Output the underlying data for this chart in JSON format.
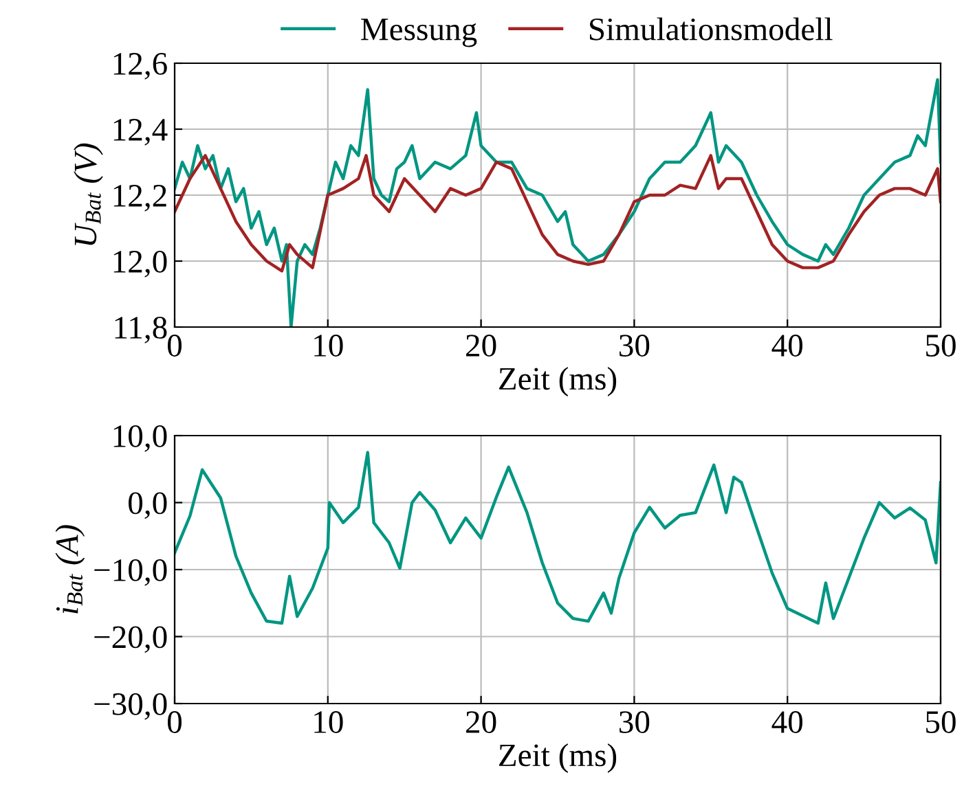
{
  "chart_data": [
    {
      "type": "line",
      "xlabel": "Zeit (ms)",
      "ylabel": "U$_{Bat}$ (V)",
      "legend": "top",
      "grid": true,
      "xlim": [
        0,
        50
      ],
      "xticks": [
        0,
        10,
        20,
        30,
        40,
        50
      ],
      "ylim": [
        11.8,
        12.6
      ],
      "yticks": [
        {
          "value": 11.8,
          "label": "11,8"
        },
        {
          "value": 12.0,
          "label": "12,0"
        },
        {
          "value": 12.2,
          "label": "12,2"
        },
        {
          "value": 12.4,
          "label": "12,4"
        },
        {
          "value": 12.6,
          "label": "12,6"
        }
      ],
      "series": [
        {
          "name": "Messung",
          "color": "#009682",
          "x": [
            0,
            0.5,
            1,
            1.5,
            2,
            2.5,
            3,
            3.5,
            4,
            4.5,
            5,
            5.5,
            6,
            6.5,
            7,
            7.3,
            7.6,
            8,
            8.5,
            9,
            9.5,
            10,
            10.5,
            11,
            11.5,
            12,
            12.6,
            13,
            13.5,
            14,
            14.5,
            15,
            15.5,
            16,
            17,
            18,
            19,
            19.7,
            20,
            21,
            22,
            23,
            24,
            25,
            25.5,
            26,
            27,
            28,
            29,
            30,
            31,
            32,
            33,
            34,
            35,
            35.5,
            36,
            37,
            38,
            39,
            40,
            41,
            42,
            42.5,
            43,
            44,
            45,
            46,
            47,
            48,
            48.5,
            49,
            49.8,
            50
          ],
          "values": [
            12.22,
            12.3,
            12.25,
            12.35,
            12.28,
            12.32,
            12.22,
            12.28,
            12.18,
            12.22,
            12.1,
            12.15,
            12.05,
            12.1,
            12.0,
            12.05,
            11.8,
            12.0,
            12.05,
            12.02,
            12.1,
            12.2,
            12.3,
            12.25,
            12.35,
            12.32,
            12.52,
            12.25,
            12.2,
            12.18,
            12.28,
            12.3,
            12.35,
            12.25,
            12.3,
            12.28,
            12.32,
            12.45,
            12.35,
            12.3,
            12.3,
            12.22,
            12.2,
            12.12,
            12.15,
            12.05,
            12.0,
            12.02,
            12.08,
            12.15,
            12.25,
            12.3,
            12.3,
            12.35,
            12.45,
            12.3,
            12.35,
            12.3,
            12.2,
            12.12,
            12.05,
            12.02,
            12.0,
            12.05,
            12.02,
            12.1,
            12.2,
            12.25,
            12.3,
            12.32,
            12.38,
            12.35,
            12.55,
            12.3
          ]
        },
        {
          "name": "Simulationsmodell",
          "color": "#a22223",
          "x": [
            0,
            1,
            2,
            3,
            4,
            5,
            6,
            7,
            7.5,
            8,
            9,
            10,
            11,
            12,
            12.5,
            13,
            14,
            15,
            16,
            17,
            18,
            19,
            20,
            21,
            22,
            23,
            24,
            25,
            26,
            27,
            28,
            29,
            30,
            31,
            32,
            33,
            34,
            35,
            35.5,
            36,
            37,
            38,
            39,
            40,
            41,
            42,
            43,
            44,
            45,
            46,
            47,
            48,
            49,
            49.8,
            50
          ],
          "values": [
            12.15,
            12.25,
            12.32,
            12.22,
            12.12,
            12.05,
            12.0,
            11.97,
            12.05,
            12.02,
            11.98,
            12.2,
            12.22,
            12.25,
            12.32,
            12.2,
            12.15,
            12.25,
            12.2,
            12.15,
            12.22,
            12.2,
            12.22,
            12.3,
            12.28,
            12.18,
            12.08,
            12.02,
            12.0,
            11.99,
            12.0,
            12.08,
            12.18,
            12.2,
            12.2,
            12.23,
            12.22,
            12.32,
            12.22,
            12.25,
            12.25,
            12.15,
            12.05,
            12.0,
            11.98,
            11.98,
            12.0,
            12.08,
            12.15,
            12.2,
            12.22,
            12.22,
            12.2,
            12.28,
            12.18
          ]
        }
      ]
    },
    {
      "type": "line",
      "xlabel": "Zeit (ms)",
      "ylabel": "i$_{Bat}$ (A)",
      "grid": true,
      "xlim": [
        0,
        50
      ],
      "xticks": [
        0,
        10,
        20,
        30,
        40,
        50
      ],
      "ylim": [
        -30,
        10
      ],
      "yticks": [
        {
          "value": -30,
          "label": "−30,0"
        },
        {
          "value": -20,
          "label": "−20,0"
        },
        {
          "value": -10,
          "label": "−10,0"
        },
        {
          "value": 0,
          "label": "0,0"
        },
        {
          "value": 10,
          "label": "10,0"
        }
      ],
      "series": [
        {
          "color": "#009682",
          "x": [
            0,
            1,
            1.8,
            3,
            4,
            5,
            6,
            7,
            7.5,
            8,
            9,
            10,
            10.1,
            11,
            12,
            12.6,
            13,
            14,
            14.7,
            15.5,
            16,
            17,
            18,
            19,
            20,
            21,
            21.8,
            23,
            24,
            25,
            26,
            27,
            28,
            28.5,
            29,
            30,
            31,
            32,
            33,
            34,
            35.2,
            36,
            36.5,
            37,
            38,
            39,
            40,
            41,
            42,
            42.5,
            43,
            44,
            45,
            46,
            47,
            48,
            49,
            49.7,
            50
          ],
          "values": [
            -7.5,
            -2,
            4.9,
            0.7,
            -8,
            -13.5,
            -17.7,
            -18,
            -11,
            -17,
            -12.8,
            -6.8,
            0,
            -3,
            -0.7,
            7.5,
            -3,
            -6,
            -9.8,
            0,
            1.5,
            -1.1,
            -6,
            -2.3,
            -5.3,
            0.8,
            5.3,
            -1.5,
            -9,
            -15,
            -17.3,
            -17.7,
            -13.5,
            -16.5,
            -11.3,
            -4.5,
            -0.7,
            -3.8,
            -1.9,
            -1.5,
            5.6,
            -1.5,
            3.8,
            3,
            -3.8,
            -10.5,
            -15.8,
            -16.9,
            -18,
            -12,
            -17.3,
            -11.3,
            -5.3,
            0,
            -2.3,
            -0.8,
            -2.6,
            -9,
            3
          ]
        }
      ]
    }
  ]
}
